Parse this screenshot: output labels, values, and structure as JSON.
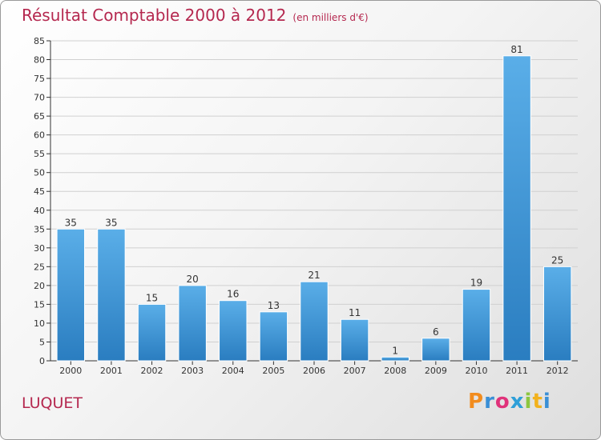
{
  "header": {
    "title": "Résultat Comptable 2000 à 2012",
    "subtitle": "(en milliers d'€)"
  },
  "footer": {
    "commune": "LUQUET",
    "logo_letters": [
      {
        "ch": "P",
        "color": "#f28c1e"
      },
      {
        "ch": "r",
        "color": "#3a8fd6"
      },
      {
        "ch": "o",
        "color": "#e0327a"
      },
      {
        "ch": "x",
        "color": "#2e9fd8"
      },
      {
        "ch": "i",
        "color": "#8cc63f"
      },
      {
        "ch": "t",
        "color": "#f2b21e"
      },
      {
        "ch": "i",
        "color": "#3a8fd6"
      }
    ]
  },
  "chart_data": {
    "type": "bar",
    "title": "Résultat Comptable 2000 à 2012",
    "subtitle": "(en milliers d'€)",
    "categories": [
      "2000",
      "2001",
      "2002",
      "2003",
      "2004",
      "2005",
      "2006",
      "2007",
      "2008",
      "2009",
      "2010",
      "2011",
      "2012"
    ],
    "values": [
      35,
      35,
      15,
      20,
      16,
      13,
      21,
      11,
      1,
      6,
      19,
      81,
      25
    ],
    "data_labels": [
      "35",
      "35",
      "15",
      "20",
      "16",
      "13",
      "21",
      "11",
      "1",
      "6",
      "19",
      "81",
      "25"
    ],
    "ylim": [
      0,
      85
    ],
    "yticks": [
      0,
      5,
      10,
      15,
      20,
      25,
      30,
      35,
      40,
      45,
      50,
      55,
      60,
      65,
      70,
      75,
      80,
      85
    ],
    "grid": true,
    "bar_color_top": "#5aaee8",
    "bar_color_bottom": "#2a7dc0"
  }
}
